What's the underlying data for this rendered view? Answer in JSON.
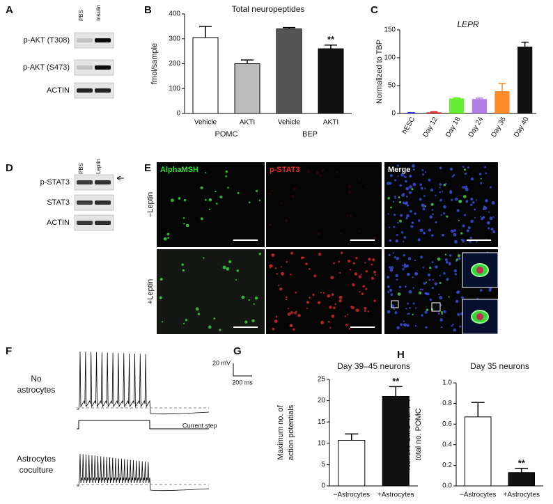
{
  "panels": {
    "A": {
      "letter": "A",
      "lanes": [
        "PBS",
        "Insulin"
      ],
      "rows": [
        "p-AKT (T308)",
        "p-AKT (S473)",
        "ACTIN"
      ]
    },
    "D": {
      "letter": "D",
      "lanes": [
        "PBS",
        "Leptin"
      ],
      "rows": [
        "p-STAT3",
        "STAT3",
        "ACTIN"
      ]
    },
    "E": {
      "letter": "E",
      "columns": [
        "AlphaMSH",
        "p-STAT3",
        "Merge"
      ],
      "rows": [
        "−Leptin",
        "+Leptin"
      ]
    },
    "F": {
      "letter": "F",
      "conditions": [
        [
          "No",
          "astrocytes"
        ],
        [
          "Astrocytes",
          "coculture"
        ]
      ],
      "scale_mv": "20 mV",
      "scale_ms": "200 ms",
      "step_label": "Current step"
    }
  },
  "chart_data": [
    {
      "type": "bar",
      "letter": "B",
      "title": "Total neuropeptides",
      "ylabel": [
        "fmol/sample"
      ],
      "categories": [
        "Vehicle",
        "AKTI",
        "Vehicle",
        "AKTI"
      ],
      "group_labels": [
        "POMC",
        "BEP"
      ],
      "values": [
        305,
        200,
        340,
        260
      ],
      "errors": [
        45,
        15,
        5,
        15
      ],
      "colors": [
        "#ffffff",
        "#bbbbbb",
        "#555555",
        "#111111"
      ],
      "value_annotations": [
        null,
        null,
        null,
        "**"
      ],
      "ylim": [
        0,
        400
      ],
      "yticks": [
        0,
        100,
        200,
        300,
        400
      ]
    },
    {
      "type": "bar",
      "letter": "C",
      "title": "LEPR",
      "ylabel": [
        "Normalized to TBP"
      ],
      "categories": [
        "hESC",
        "Day 12",
        "Day 18",
        "Day 24",
        "Day 36",
        "Day 40"
      ],
      "values": [
        1,
        2,
        27,
        26,
        40,
        120
      ],
      "errors": [
        0.5,
        1,
        1,
        1.5,
        14,
        8
      ],
      "colors": [
        "#3a3ad6",
        "#e02020",
        "#66ee33",
        "#b27ee6",
        "#ff8c2a",
        "#111111"
      ],
      "ylim": [
        0,
        150
      ],
      "yticks": [
        0,
        50,
        100,
        150
      ]
    },
    {
      "type": "bar",
      "letter": "G",
      "title": "Day 39–45 neurons",
      "ylabel": [
        "Maximum no. of",
        "action potentials"
      ],
      "categories": [
        "−Astrocytes",
        "+Astrocytes"
      ],
      "values": [
        10.7,
        21
      ],
      "errors": [
        1.5,
        2.3
      ],
      "colors": [
        "#ffffff",
        "#111111"
      ],
      "value_annotations": [
        null,
        "**"
      ],
      "ylim": [
        0,
        25
      ],
      "yticks": [
        0,
        5,
        10,
        15,
        20,
        25
      ]
    },
    {
      "type": "bar",
      "letter": "H",
      "title": "Day 35 neurons",
      "ylabel": [
        "No. of POMC⁺NPY⁺/",
        "total no. POMC"
      ],
      "categories": [
        "−Astrocytes",
        "+Astrocytes"
      ],
      "values": [
        0.67,
        0.13
      ],
      "errors": [
        0.14,
        0.04
      ],
      "colors": [
        "#ffffff",
        "#111111"
      ],
      "value_annotations": [
        null,
        "**"
      ],
      "ylim": [
        0,
        1
      ],
      "yticks": [
        {
          "value": 0,
          "label": "0.0"
        },
        0.2,
        0.4,
        0.6,
        0.8,
        {
          "value": 1,
          "label": "1.0"
        }
      ]
    }
  ]
}
